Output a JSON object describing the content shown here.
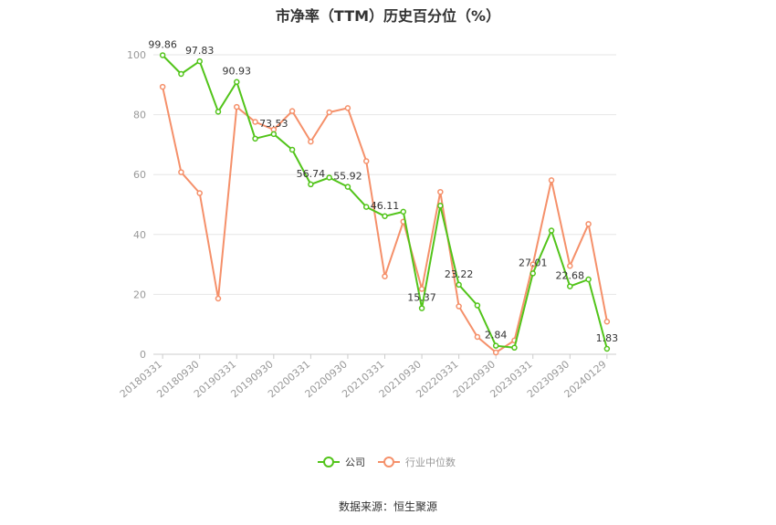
{
  "title": "市净率（TTM）历史百分位（%）",
  "source": "数据来源：恒生聚源",
  "colors": {
    "company": "#52c41a",
    "industry": "#f5906a",
    "grid": "#e6e6e6",
    "axis": "#cccccc"
  },
  "chart_data": {
    "type": "line",
    "title": "市净率（TTM）历史百分位（%）",
    "ylim": [
      0,
      100
    ],
    "y_ticks": [
      0,
      20,
      40,
      60,
      80,
      100
    ],
    "x_tick_labels": [
      "20180331",
      "20180930",
      "20190331",
      "20190930",
      "20200331",
      "20200930",
      "20210331",
      "20210930",
      "20220331",
      "20220930",
      "20230331",
      "20230930",
      "20240129"
    ],
    "legend": {
      "placement": "bottom-center"
    },
    "grid": true,
    "series": [
      {
        "name": "公司",
        "color": "#52c41a",
        "values": [
          99.86,
          93.6,
          97.83,
          81.0,
          90.93,
          72.0,
          73.53,
          68.3,
          56.74,
          59.0,
          55.92,
          49.2,
          46.11,
          47.6,
          15.37,
          49.6,
          23.22,
          16.3,
          2.84,
          2.2,
          27.01,
          41.3,
          22.68,
          25.0,
          1.83
        ],
        "labels": [
          99.86,
          null,
          97.83,
          null,
          90.93,
          null,
          73.53,
          null,
          56.74,
          null,
          55.92,
          null,
          46.11,
          null,
          15.37,
          null,
          23.22,
          null,
          2.84,
          null,
          27.01,
          null,
          22.68,
          null,
          1.83
        ]
      },
      {
        "name": "行业中位数",
        "color": "#f5906a",
        "values": [
          89.3,
          60.8,
          53.8,
          18.6,
          82.6,
          77.6,
          75.0,
          81.2,
          71.0,
          80.8,
          82.2,
          64.5,
          26.0,
          44.3,
          21.8,
          54.2,
          16.0,
          5.8,
          0.6,
          4.6,
          30.0,
          58.1,
          29.5,
          43.5,
          10.9
        ]
      }
    ]
  }
}
